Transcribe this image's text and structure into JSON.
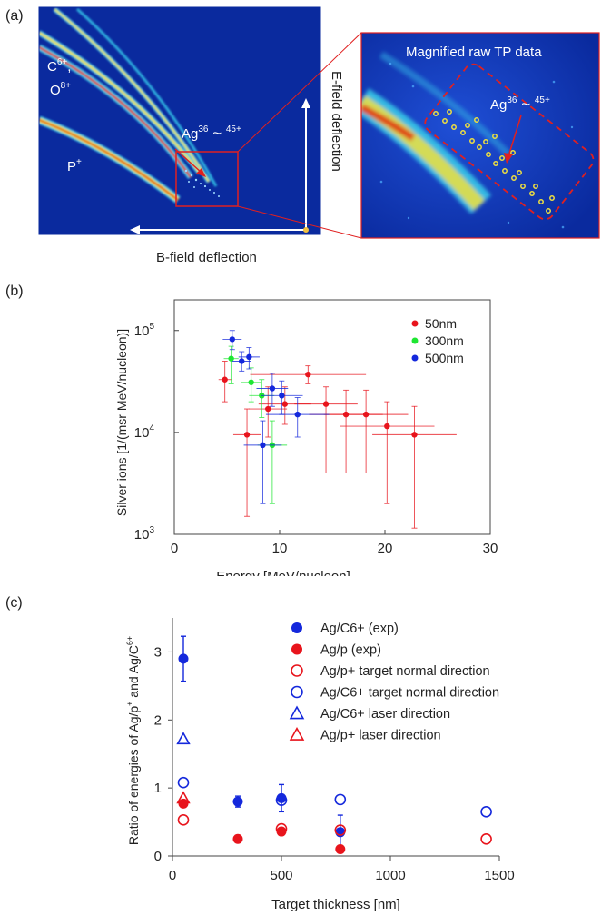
{
  "figure": {
    "panel_labels": [
      "(a)",
      "(b)",
      "(c)"
    ]
  },
  "panel_a": {
    "labels": {
      "c6_o8": [
        "C6+,",
        "O8+"
      ],
      "p_plus": "P+",
      "ag_main": "Ag36 ~ 45+",
      "ag_inset": "Ag36 ~ 45+",
      "efield": "E-field deflection",
      "bfield": "B-field deflection",
      "inset_title": "Magnified raw TP data"
    },
    "colors": {
      "background": "#0a2a9e",
      "trace_hot": "#e03a10",
      "trace_mid": "#f0e040",
      "trace_cool": "#39c8e8",
      "box": "#e02020"
    }
  },
  "chart_data": [
    {
      "panel": "b",
      "type": "scatter",
      "xlabel": "Energy [MeV/nucleon]",
      "ylabel": "Silver ions [1/(msr MeV/nucleon)]",
      "xlim": [
        0,
        30
      ],
      "ylim": [
        1000,
        200000
      ],
      "yscale": "log",
      "xticks": [
        "0",
        "10",
        "20",
        "30"
      ],
      "yticks": [
        {
          "value": 1000,
          "base": "10",
          "exp": "3"
        },
        {
          "value": 10000,
          "base": "10",
          "exp": "4"
        },
        {
          "value": 100000,
          "base": "10",
          "exp": "5"
        }
      ],
      "legend_position": "top-right",
      "series": [
        {
          "name": "50nm",
          "color": "#e8141c",
          "points": [
            {
              "x": 4.8,
              "y": 33000,
              "xerr": 0.6,
              "ylo": 20000,
              "yhi": 50000
            },
            {
              "x": 6.9,
              "y": 9500,
              "xerr": 1.3,
              "ylo": 1500,
              "yhi": 17000
            },
            {
              "x": 8.9,
              "y": 17000,
              "xerr": 1.8,
              "ylo": 9000,
              "yhi": 28000
            },
            {
              "x": 10.5,
              "y": 19000,
              "xerr": 2.5,
              "ylo": 12000,
              "yhi": 28000
            },
            {
              "x": 12.7,
              "y": 37000,
              "xerr": 5.5,
              "ylo": 30000,
              "yhi": 45000
            },
            {
              "x": 14.4,
              "y": 19000,
              "xerr": 3.0,
              "ylo": 4000,
              "yhi": 28000
            },
            {
              "x": 16.3,
              "y": 15000,
              "xerr": 3.5,
              "ylo": 4000,
              "yhi": 26000
            },
            {
              "x": 18.2,
              "y": 15000,
              "xerr": 4.0,
              "ylo": 4000,
              "yhi": 26000
            },
            {
              "x": 20.2,
              "y": 11500,
              "xerr": 4.5,
              "ylo": 2000,
              "yhi": 20000
            },
            {
              "x": 22.8,
              "y": 9500,
              "xerr": 4.0,
              "ylo": 1150,
              "yhi": 18000
            }
          ]
        },
        {
          "name": "300nm",
          "color": "#1ee632",
          "points": [
            {
              "x": 5.4,
              "y": 53000,
              "xerr": 0.7,
              "ylo": 30000,
              "yhi": 70000
            },
            {
              "x": 7.3,
              "y": 31000,
              "xerr": 1.0,
              "ylo": 20000,
              "yhi": 43000
            },
            {
              "x": 8.3,
              "y": 23000,
              "xerr": 1.2,
              "ylo": 14000,
              "yhi": 33000
            },
            {
              "x": 9.3,
              "y": 7500,
              "xerr": 1.4,
              "ylo": 2000,
              "yhi": 13000
            }
          ]
        },
        {
          "name": "500nm",
          "color": "#1428dc",
          "points": [
            {
              "x": 5.5,
              "y": 82000,
              "xerr": 0.9,
              "ylo": 65000,
              "yhi": 100000
            },
            {
              "x": 6.4,
              "y": 50000,
              "xerr": 0.9,
              "ylo": 40000,
              "yhi": 62000
            },
            {
              "x": 7.1,
              "y": 55000,
              "xerr": 1.0,
              "ylo": 42000,
              "yhi": 68000
            },
            {
              "x": 8.4,
              "y": 7500,
              "xerr": 1.8,
              "ylo": 2000,
              "yhi": 13000
            },
            {
              "x": 9.3,
              "y": 27000,
              "xerr": 1.5,
              "ylo": 18000,
              "yhi": 38000
            },
            {
              "x": 10.2,
              "y": 23000,
              "xerr": 2.0,
              "ylo": 15000,
              "yhi": 32000
            },
            {
              "x": 11.7,
              "y": 15000,
              "xerr": 3.0,
              "ylo": 9000,
              "yhi": 22000
            }
          ]
        }
      ]
    },
    {
      "panel": "c",
      "type": "scatter",
      "xlabel": "Target thickness [nm]",
      "ylabel": "Ratio of energies of Ag/p+ and Ag/C6+",
      "xlim": [
        0,
        1500
      ],
      "ylim": [
        0,
        3.5
      ],
      "xticks": [
        "0",
        "500",
        "1000",
        "1500"
      ],
      "yticks": [
        "0",
        "1",
        "2",
        "3"
      ],
      "legend_position": "top-right",
      "series": [
        {
          "name": "Ag/C6+ (exp)",
          "marker": "filled-circle",
          "color": "#1428dc",
          "points": [
            {
              "x": 50,
              "y": 2.9,
              "err": 0.33
            },
            {
              "x": 300,
              "y": 0.8,
              "err": 0.08
            },
            {
              "x": 500,
              "y": 0.85,
              "err": 0.2
            },
            {
              "x": 770,
              "y": 0.35,
              "err": 0.25
            }
          ]
        },
        {
          "name": "Ag/p (exp)",
          "marker": "filled-circle",
          "color": "#e8141c",
          "points": [
            {
              "x": 50,
              "y": 0.77,
              "err": 0.05
            },
            {
              "x": 300,
              "y": 0.25,
              "err": 0
            },
            {
              "x": 500,
              "y": 0.36,
              "err": 0.05
            },
            {
              "x": 770,
              "y": 0.1,
              "err": 0
            }
          ]
        },
        {
          "name": "Ag/p+ target normal direction",
          "marker": "open-circle",
          "color": "#e8141c",
          "points": [
            {
              "x": 50,
              "y": 0.53
            },
            {
              "x": 500,
              "y": 0.4
            },
            {
              "x": 770,
              "y": 0.38
            },
            {
              "x": 1440,
              "y": 0.25
            }
          ]
        },
        {
          "name": "Ag/C6+ target normal direction",
          "marker": "open-circle",
          "color": "#1428dc",
          "points": [
            {
              "x": 50,
              "y": 1.08
            },
            {
              "x": 500,
              "y": 0.82
            },
            {
              "x": 770,
              "y": 0.83
            },
            {
              "x": 1440,
              "y": 0.65
            }
          ]
        },
        {
          "name": "Ag/C6+ laser direction",
          "marker": "open-triangle",
          "color": "#1428dc",
          "points": [
            {
              "x": 50,
              "y": 1.72
            }
          ]
        },
        {
          "name": "Ag/p+ laser direction",
          "marker": "open-triangle",
          "color": "#e8141c",
          "points": [
            {
              "x": 50,
              "y": 0.85
            }
          ]
        }
      ]
    }
  ]
}
